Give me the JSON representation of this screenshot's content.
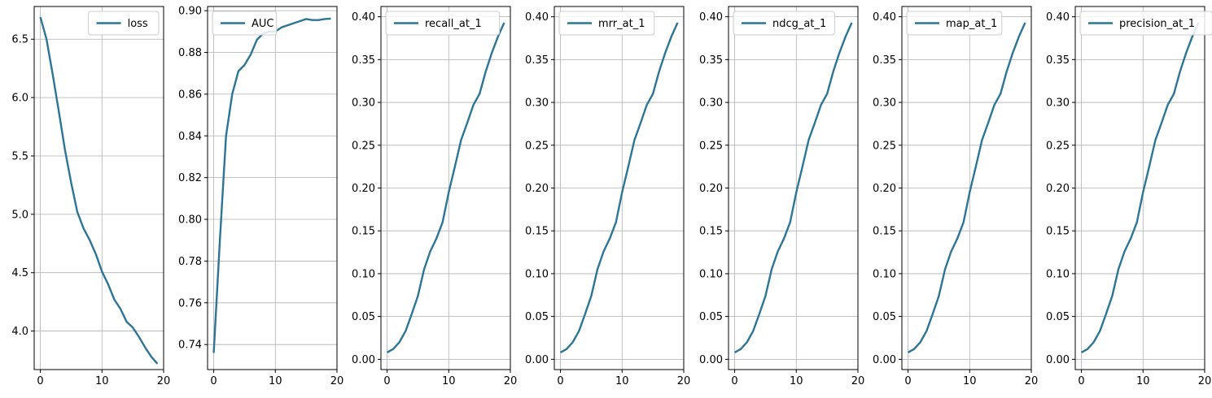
{
  "chart_data": [
    {
      "type": "line",
      "x": [
        0,
        1,
        2,
        3,
        4,
        5,
        6,
        7,
        8,
        9,
        10,
        11,
        12,
        13,
        14,
        15,
        16,
        17,
        18,
        19
      ],
      "series": [
        {
          "name": "loss",
          "values": [
            6.69,
            6.5,
            6.2,
            5.88,
            5.55,
            5.27,
            5.02,
            4.88,
            4.78,
            4.66,
            4.51,
            4.4,
            4.27,
            4.19,
            4.08,
            4.03,
            3.95,
            3.86,
            3.78,
            3.72
          ]
        }
      ],
      "ylim": [
        3.67,
        6.78
      ],
      "xlim": [
        -1,
        20
      ],
      "yticks": [
        4.0,
        4.5,
        5.0,
        5.5,
        6.0,
        6.5
      ],
      "ytick_labels": [
        "4.0",
        "4.5",
        "5.0",
        "5.5",
        "6.0",
        "6.5"
      ],
      "xticks": [
        0,
        10,
        20
      ],
      "xtick_labels": [
        "0",
        "10",
        "20"
      ],
      "legend": "upper right",
      "grid": true,
      "color": "#2c7595"
    },
    {
      "type": "line",
      "x": [
        0,
        1,
        2,
        3,
        4,
        5,
        6,
        7,
        8,
        9,
        10,
        11,
        12,
        13,
        14,
        15,
        16,
        17,
        18,
        19
      ],
      "series": [
        {
          "name": "AUC",
          "values": [
            0.736,
            0.79,
            0.84,
            0.86,
            0.871,
            0.874,
            0.879,
            0.886,
            0.889,
            0.89,
            0.89,
            0.892,
            0.893,
            0.894,
            0.895,
            0.896,
            0.8955,
            0.8955,
            0.896,
            0.8962
          ]
        }
      ],
      "ylim": [
        0.728,
        0.902
      ],
      "xlim": [
        -1,
        20
      ],
      "yticks": [
        0.74,
        0.76,
        0.78,
        0.8,
        0.82,
        0.84,
        0.86,
        0.88,
        0.9
      ],
      "ytick_labels": [
        "0.74",
        "0.76",
        "0.78",
        "0.80",
        "0.82",
        "0.84",
        "0.86",
        "0.88",
        "0.90"
      ],
      "xticks": [
        0,
        10,
        20
      ],
      "xtick_labels": [
        "0",
        "10",
        "20"
      ],
      "legend": "upper left",
      "grid": true,
      "color": "#2c7595"
    },
    {
      "type": "line",
      "x": [
        0,
        1,
        2,
        3,
        4,
        5,
        6,
        7,
        8,
        9,
        10,
        11,
        12,
        13,
        14,
        15,
        16,
        17,
        18,
        19
      ],
      "series": [
        {
          "name": "recall_at_1",
          "values": [
            0.008,
            0.012,
            0.02,
            0.033,
            0.053,
            0.074,
            0.105,
            0.126,
            0.141,
            0.16,
            0.195,
            0.225,
            0.256,
            0.276,
            0.297,
            0.31,
            0.336,
            0.358,
            0.377,
            0.393
          ]
        }
      ],
      "ylim": [
        -0.012,
        0.412
      ],
      "xlim": [
        -1,
        20
      ],
      "yticks": [
        0.0,
        0.05,
        0.1,
        0.15,
        0.2,
        0.25,
        0.3,
        0.35,
        0.4
      ],
      "ytick_labels": [
        "0.00",
        "0.05",
        "0.10",
        "0.15",
        "0.20",
        "0.25",
        "0.30",
        "0.35",
        "0.40"
      ],
      "xticks": [
        0,
        10,
        20
      ],
      "xtick_labels": [
        "0",
        "10",
        "20"
      ],
      "legend": "upper left",
      "grid": true,
      "color": "#2c7595"
    },
    {
      "type": "line",
      "x": [
        0,
        1,
        2,
        3,
        4,
        5,
        6,
        7,
        8,
        9,
        10,
        11,
        12,
        13,
        14,
        15,
        16,
        17,
        18,
        19
      ],
      "series": [
        {
          "name": "mrr_at_1",
          "values": [
            0.008,
            0.012,
            0.02,
            0.033,
            0.053,
            0.074,
            0.105,
            0.126,
            0.141,
            0.16,
            0.195,
            0.225,
            0.256,
            0.276,
            0.297,
            0.31,
            0.336,
            0.358,
            0.377,
            0.393
          ]
        }
      ],
      "ylim": [
        -0.012,
        0.412
      ],
      "xlim": [
        -1,
        20
      ],
      "yticks": [
        0.0,
        0.05,
        0.1,
        0.15,
        0.2,
        0.25,
        0.3,
        0.35,
        0.4
      ],
      "ytick_labels": [
        "0.00",
        "0.05",
        "0.10",
        "0.15",
        "0.20",
        "0.25",
        "0.30",
        "0.35",
        "0.40"
      ],
      "xticks": [
        0,
        10,
        20
      ],
      "xtick_labels": [
        "0",
        "10",
        "20"
      ],
      "legend": "upper left",
      "grid": true,
      "color": "#2c7595"
    },
    {
      "type": "line",
      "x": [
        0,
        1,
        2,
        3,
        4,
        5,
        6,
        7,
        8,
        9,
        10,
        11,
        12,
        13,
        14,
        15,
        16,
        17,
        18,
        19
      ],
      "series": [
        {
          "name": "ndcg_at_1",
          "values": [
            0.008,
            0.012,
            0.02,
            0.033,
            0.053,
            0.074,
            0.105,
            0.126,
            0.141,
            0.16,
            0.195,
            0.225,
            0.256,
            0.276,
            0.297,
            0.31,
            0.336,
            0.358,
            0.377,
            0.393
          ]
        }
      ],
      "ylim": [
        -0.012,
        0.412
      ],
      "xlim": [
        -1,
        20
      ],
      "yticks": [
        0.0,
        0.05,
        0.1,
        0.15,
        0.2,
        0.25,
        0.3,
        0.35,
        0.4
      ],
      "ytick_labels": [
        "0.00",
        "0.05",
        "0.10",
        "0.15",
        "0.20",
        "0.25",
        "0.30",
        "0.35",
        "0.40"
      ],
      "xticks": [
        0,
        10,
        20
      ],
      "xtick_labels": [
        "0",
        "10",
        "20"
      ],
      "legend": "upper left",
      "grid": true,
      "color": "#2c7595"
    },
    {
      "type": "line",
      "x": [
        0,
        1,
        2,
        3,
        4,
        5,
        6,
        7,
        8,
        9,
        10,
        11,
        12,
        13,
        14,
        15,
        16,
        17,
        18,
        19
      ],
      "series": [
        {
          "name": "map_at_1",
          "values": [
            0.008,
            0.012,
            0.02,
            0.033,
            0.053,
            0.074,
            0.105,
            0.126,
            0.141,
            0.16,
            0.195,
            0.225,
            0.256,
            0.276,
            0.297,
            0.31,
            0.336,
            0.358,
            0.377,
            0.393
          ]
        }
      ],
      "ylim": [
        -0.012,
        0.412
      ],
      "xlim": [
        -1,
        20
      ],
      "yticks": [
        0.0,
        0.05,
        0.1,
        0.15,
        0.2,
        0.25,
        0.3,
        0.35,
        0.4
      ],
      "ytick_labels": [
        "0.00",
        "0.05",
        "0.10",
        "0.15",
        "0.20",
        "0.25",
        "0.30",
        "0.35",
        "0.40"
      ],
      "xticks": [
        0,
        10,
        20
      ],
      "xtick_labels": [
        "0",
        "10",
        "20"
      ],
      "legend": "upper left",
      "grid": true,
      "color": "#2c7595"
    },
    {
      "type": "line",
      "x": [
        0,
        1,
        2,
        3,
        4,
        5,
        6,
        7,
        8,
        9,
        10,
        11,
        12,
        13,
        14,
        15,
        16,
        17,
        18,
        19
      ],
      "series": [
        {
          "name": "precision_at_1",
          "values": [
            0.008,
            0.012,
            0.02,
            0.033,
            0.053,
            0.074,
            0.105,
            0.126,
            0.141,
            0.16,
            0.195,
            0.225,
            0.256,
            0.276,
            0.297,
            0.31,
            0.336,
            0.358,
            0.377,
            0.393
          ]
        }
      ],
      "ylim": [
        -0.012,
        0.412
      ],
      "xlim": [
        -1,
        20
      ],
      "yticks": [
        0.0,
        0.05,
        0.1,
        0.15,
        0.2,
        0.25,
        0.3,
        0.35,
        0.4
      ],
      "ytick_labels": [
        "0.00",
        "0.05",
        "0.10",
        "0.15",
        "0.20",
        "0.25",
        "0.30",
        "0.35",
        "0.40"
      ],
      "xticks": [
        0,
        10,
        20
      ],
      "xtick_labels": [
        "0",
        "10",
        "20"
      ],
      "legend": "upper left",
      "grid": true,
      "color": "#2c7595"
    }
  ]
}
